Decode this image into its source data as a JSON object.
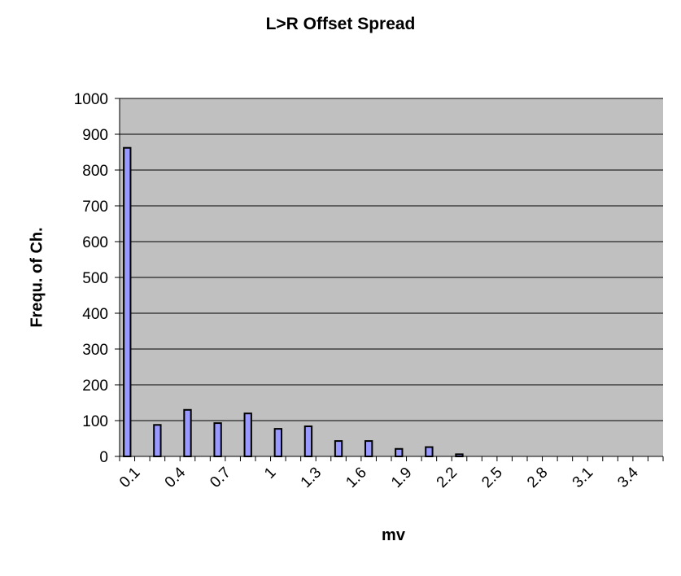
{
  "chart_data": {
    "type": "bar",
    "title": "L>R Offset Spread",
    "xlabel": "mv",
    "ylabel": "Frequ. of Ch.",
    "ylim": [
      0,
      1000
    ],
    "yticks": [
      "0",
      "100",
      "200",
      "300",
      "400",
      "500",
      "600",
      "700",
      "800",
      "900",
      "1000"
    ],
    "categories": [
      "0.1",
      "0.2",
      "0.3",
      "0.4",
      "0.5",
      "0.6",
      "0.7",
      "0.8",
      "0.9",
      "1",
      "1.1",
      "1.2",
      "1.3",
      "1.4",
      "1.5",
      "1.6",
      "1.7",
      "1.8",
      "1.9",
      "2",
      "2.1",
      "2.2",
      "2.3",
      "2.4",
      "2.5",
      "2.6",
      "2.7",
      "2.8",
      "2.9",
      "3",
      "3.1",
      "3.2",
      "3.3",
      "3.4",
      "3.5",
      "3.6"
    ],
    "xtick_labels": [
      "0.1",
      "",
      "",
      "0.4",
      "",
      "",
      "0.7",
      "",
      "",
      "1",
      "",
      "",
      "1.3",
      "",
      "",
      "1.6",
      "",
      "",
      "1.9",
      "",
      "",
      "2.2",
      "",
      "",
      "2.5",
      "",
      "",
      "2.8",
      "",
      "",
      "3.1",
      "",
      "",
      "3.4",
      "",
      ""
    ],
    "values": [
      862,
      0,
      88,
      0,
      130,
      0,
      93,
      0,
      120,
      0,
      77,
      0,
      84,
      0,
      43,
      0,
      43,
      0,
      21,
      0,
      26,
      0,
      6,
      0,
      0,
      0,
      0,
      0,
      0,
      0,
      0,
      0,
      0,
      0,
      0,
      0
    ],
    "grid": true,
    "colors": {
      "plot_background": "#c0c0c0",
      "bar_fill": "#9999ff",
      "bar_stroke": "#000000",
      "gridline": "#000000"
    }
  }
}
